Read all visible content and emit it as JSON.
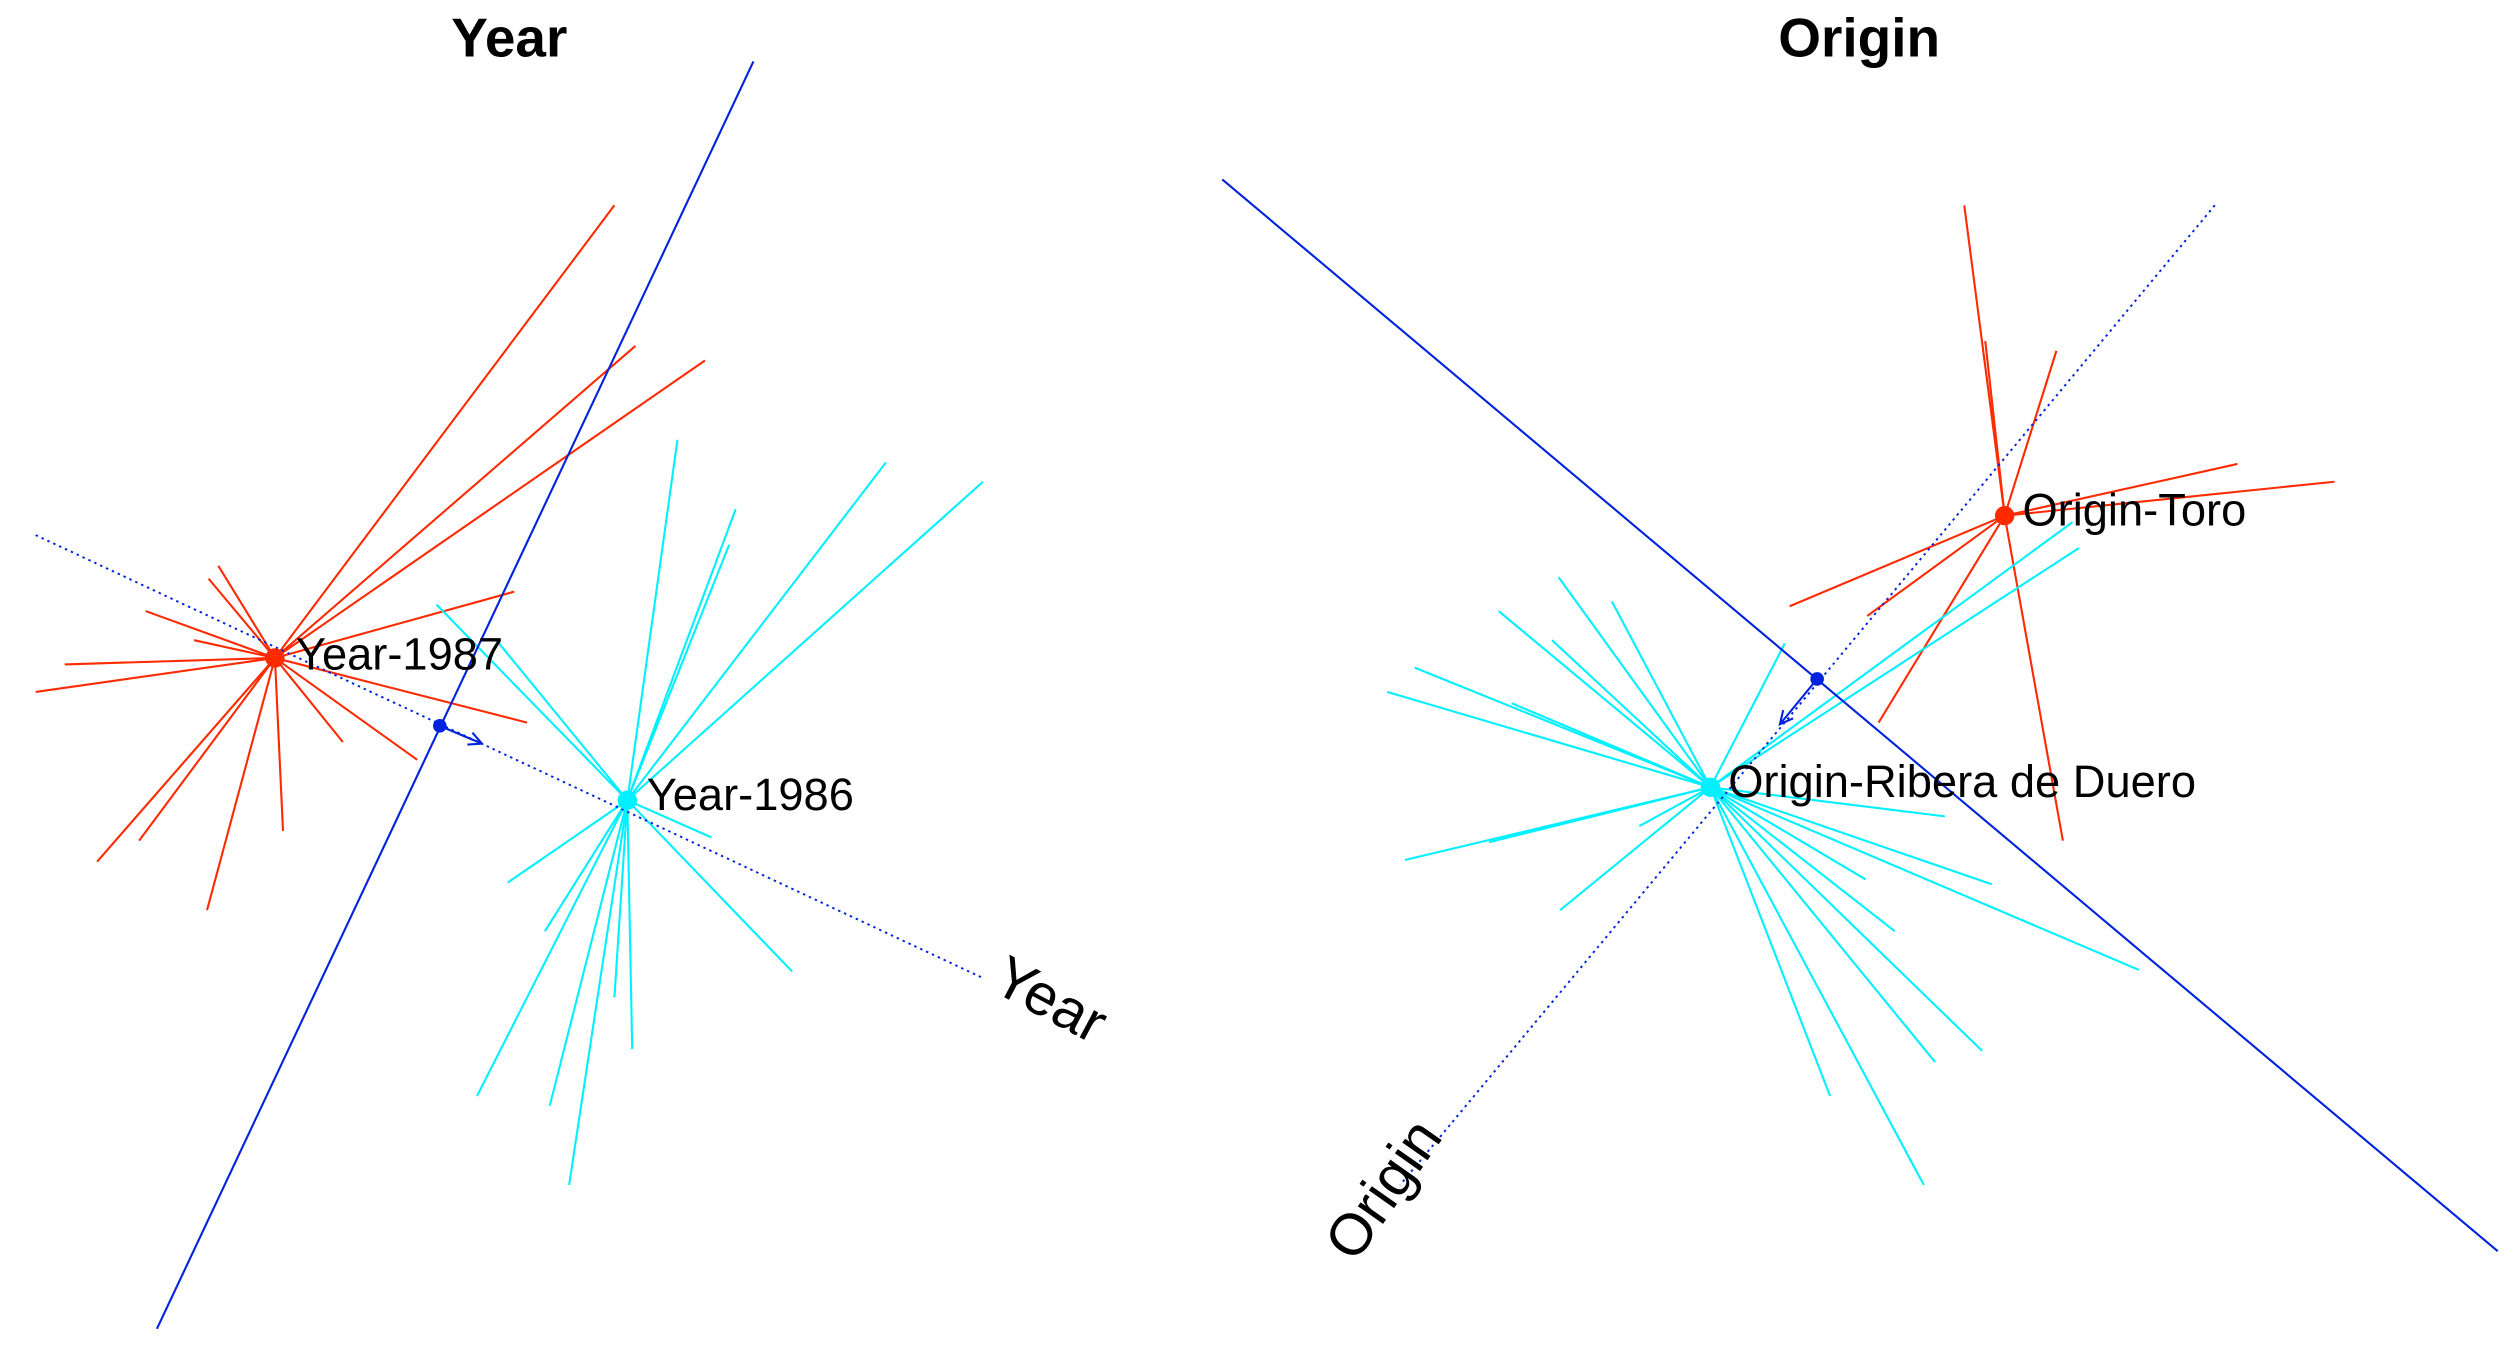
{
  "chart_data": [
    {
      "type": "scatter",
      "title": "Year",
      "axis_label": "Year",
      "colors": {
        "group_1987": "#ff2a00",
        "group_1986": "#00f0ff",
        "separator": "#0022dd",
        "axis": "#0022dd"
      },
      "groups": [
        {
          "name": "Year-1987",
          "color": "#ff2a00",
          "center": [
            170,
            407
          ],
          "spokes": [
            [
              380,
              127
            ],
            [
              393,
              214
            ],
            [
              436,
              223
            ],
            [
              318,
              366
            ],
            [
              326,
              447
            ],
            [
              258,
              470
            ],
            [
              212,
              459
            ],
            [
              175,
              514
            ],
            [
              128,
              563
            ],
            [
              86,
              520
            ],
            [
              60,
              533
            ],
            [
              40,
              411
            ],
            [
              22,
              428
            ],
            [
              90,
              378
            ],
            [
              129,
              358
            ],
            [
              135,
              350
            ],
            [
              120,
              396
            ]
          ]
        },
        {
          "name": "Year-1986",
          "color": "#00f0ff",
          "center": [
            388,
            495
          ],
          "spokes": [
            [
              419,
              272
            ],
            [
              455,
              315
            ],
            [
              451,
              337
            ],
            [
              548,
              286
            ],
            [
              608,
              298
            ],
            [
              270,
              374
            ],
            [
              307,
              396
            ],
            [
              440,
              518
            ],
            [
              490,
              601
            ],
            [
              314,
              546
            ],
            [
              295,
              678
            ],
            [
              340,
              684
            ],
            [
              352,
              733
            ],
            [
              391,
              649
            ],
            [
              337,
              576
            ],
            [
              380,
              617
            ]
          ]
        }
      ],
      "separator_line": [
        [
          466,
          38
        ],
        [
          97,
          822
        ]
      ],
      "axis_line": [
        [
          22,
          331
        ],
        [
          608,
          605
        ]
      ],
      "axis_marker": [
        272,
        449
      ],
      "axis_arrow_tip": [
        298,
        460
      ]
    },
    {
      "type": "scatter",
      "title": "Origin",
      "axis_label": "Origin",
      "colors": {
        "group_toro": "#ff2a00",
        "group_ribera": "#00f0ff",
        "separator": "#0022dd",
        "axis": "#0022dd"
      },
      "groups": [
        {
          "name": "Origin-Toro",
          "color": "#ff2a00",
          "center": [
            1240,
            319
          ],
          "spokes": [
            [
              1215,
              127
            ],
            [
              1228,
              211
            ],
            [
              1272,
              217
            ],
            [
              1384,
              287
            ],
            [
              1444,
              298
            ],
            [
              1107,
              375
            ],
            [
              1155,
              381
            ],
            [
              1162,
              447
            ],
            [
              1276,
              520
            ]
          ]
        },
        {
          "name": "Origin-Ribera de Duero",
          "color": "#00f0ff",
          "center": [
            1058,
            487
          ],
          "spokes": [
            [
              1286,
              339
            ],
            [
              1282,
              323
            ],
            [
              1104,
              398
            ],
            [
              964,
              357
            ],
            [
              927,
              378
            ],
            [
              997,
              372
            ],
            [
              960,
              396
            ],
            [
              875,
              413
            ],
            [
              858,
              428
            ],
            [
              935,
              435
            ],
            [
              869,
              532
            ],
            [
              921,
              521
            ],
            [
              965,
              563
            ],
            [
              1014,
              511
            ],
            [
              1203,
              505
            ],
            [
              1232,
              547
            ],
            [
              1323,
              600
            ],
            [
              1172,
              576
            ],
            [
              1226,
              650
            ],
            [
              1197,
              657
            ],
            [
              1132,
              678
            ],
            [
              1190,
              733
            ],
            [
              1154,
              544
            ]
          ]
        }
      ],
      "separator_line": [
        [
          756,
          111
        ],
        [
          1545,
          774
        ]
      ],
      "axis_line": [
        [
          1370,
          127
        ],
        [
          866,
          733
        ]
      ],
      "axis_marker": [
        1124,
        420
      ],
      "axis_arrow_tip": [
        1101,
        448
      ]
    }
  ]
}
